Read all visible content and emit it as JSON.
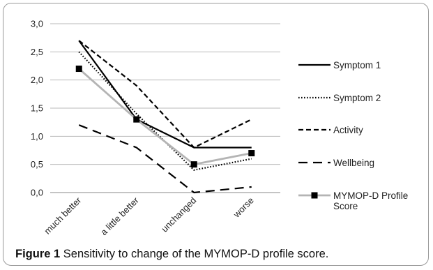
{
  "chart_data": {
    "type": "line",
    "categories": [
      "much better",
      "a little better",
      "unchanged",
      "worse"
    ],
    "ylim": [
      0,
      3
    ],
    "yticks": [
      "0,0",
      "0,5",
      "1,0",
      "1,5",
      "2,0",
      "2,5",
      "3,0"
    ],
    "grid": true,
    "legend_position": "right",
    "series": [
      {
        "name": "Symptom 1",
        "values": [
          2.7,
          1.3,
          0.8,
          0.8
        ],
        "color": "#000000",
        "style": "solid",
        "marker": "none"
      },
      {
        "name": "Symptom 2",
        "values": [
          2.5,
          1.4,
          0.4,
          0.6
        ],
        "color": "#000000",
        "style": "dotted",
        "marker": "none"
      },
      {
        "name": "Activity",
        "values": [
          2.7,
          1.9,
          0.8,
          1.3
        ],
        "color": "#000000",
        "style": "dashed",
        "marker": "none"
      },
      {
        "name": "Wellbeing",
        "values": [
          1.2,
          0.8,
          0.0,
          0.1
        ],
        "color": "#000000",
        "style": "longdash",
        "marker": "none"
      },
      {
        "name": "MYMOP-D Profile Score",
        "values": [
          2.2,
          1.3,
          0.5,
          0.7
        ],
        "color": "#b4b4b4",
        "style": "solid",
        "marker": "square"
      }
    ],
    "legend_lines": [
      [
        "Symptom 1"
      ],
      [
        "Symptom 2"
      ],
      [
        "Activity"
      ],
      [
        "Wellbeing"
      ],
      [
        "MYMOP-D Profile",
        "Score"
      ]
    ]
  },
  "caption": {
    "label": "Figure 1",
    "text": " Sensitivity to change of the MYMOP-D profile score."
  }
}
